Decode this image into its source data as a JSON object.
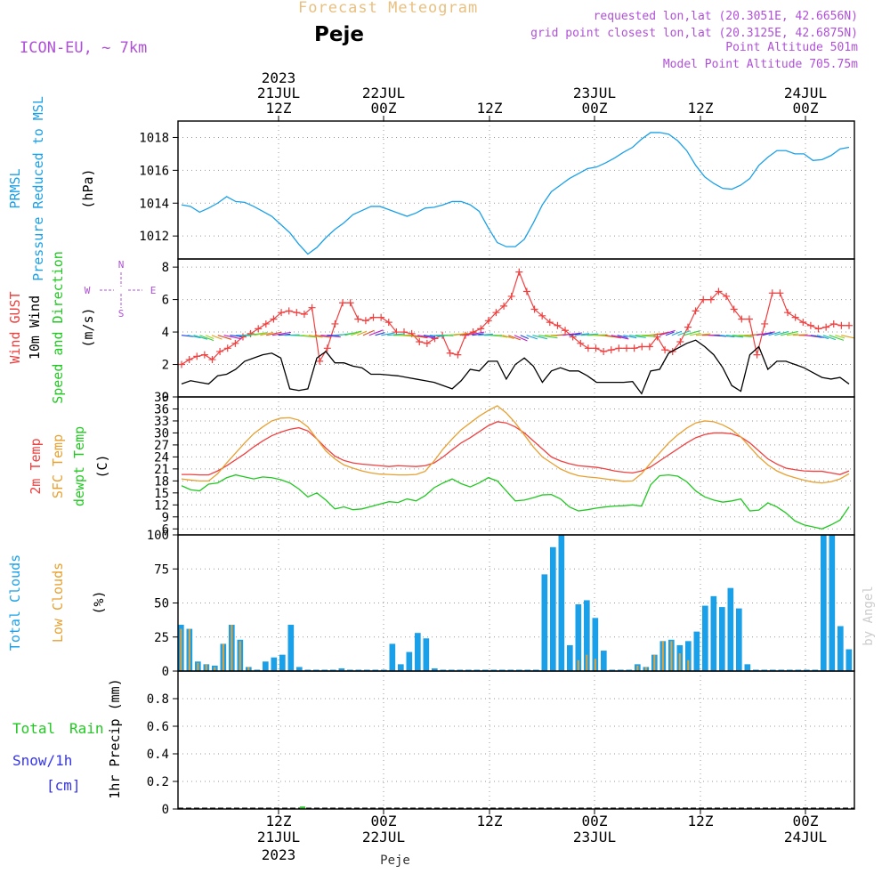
{
  "header": {
    "title": "Forecast Meteogram",
    "location": "Peje",
    "model": "ICON-EU, ~ 7km",
    "requested": "requested lon,lat (20.3051E, 42.6656N)",
    "grid": "grid point closest lon,lat (20.3125E, 42.6875N)",
    "point_alt": "Point Altitude 501m",
    "model_alt": "Model Point Altitude 705.75m",
    "credit": "by Angel",
    "footer": "Peje"
  },
  "colors": {
    "pressure": "#1aa0e8",
    "gust": "#f04040",
    "wind": "#000000",
    "green": "#22c822",
    "sfc": "#e8a030",
    "purple": "#b050d8",
    "title": "#e8c080",
    "blue": "#3333ee",
    "grid": "#999999"
  },
  "chart_data": [
    {
      "type": "line",
      "id": "pressure",
      "title": "PRMSL Pressure Reduced to MSL",
      "ylabel": "(hPa)",
      "y_ticks": [
        "1012",
        "1014",
        "1016",
        "1018"
      ],
      "ylim": [
        1010.6,
        1019.0
      ],
      "series": [
        {
          "name": "PRMSL",
          "values": [
            1013.9,
            1013.8,
            1013.45,
            1013.7,
            1014.0,
            1014.4,
            1014.1,
            1014.05,
            1013.8,
            1013.5,
            1013.2,
            1012.7,
            1012.2,
            1011.5,
            1010.9,
            1011.3,
            1011.9,
            1012.4,
            1012.8,
            1013.3,
            1013.55,
            1013.8,
            1013.8,
            1013.6,
            1013.4,
            1013.2,
            1013.4,
            1013.7,
            1013.75,
            1013.9,
            1014.1,
            1014.1,
            1013.9,
            1013.5,
            1012.5,
            1011.6,
            1011.35,
            1011.35,
            1011.8,
            1012.8,
            1013.9,
            1014.7,
            1015.1,
            1015.5,
            1015.8,
            1016.1,
            1016.2,
            1016.45,
            1016.75,
            1017.1,
            1017.4,
            1017.9,
            1018.3,
            1018.3,
            1018.2,
            1017.8,
            1017.2,
            1016.3,
            1015.6,
            1015.2,
            1014.9,
            1014.85,
            1015.1,
            1015.5,
            1016.3,
            1016.8,
            1017.2,
            1017.2,
            1017.0,
            1017.0,
            1016.6,
            1016.65,
            1016.9,
            1017.3,
            1017.4
          ]
        }
      ]
    },
    {
      "type": "line",
      "id": "wind",
      "title": "Wind GUST 10m Wind Speed and Direction",
      "ylabel": "(m/s)",
      "compass": [
        "N",
        "S",
        "W",
        "E"
      ],
      "y_ticks": [
        "0",
        "2",
        "4",
        "6",
        "8"
      ],
      "ylim": [
        0,
        8.5
      ],
      "series": [
        {
          "name": "Wind GUST",
          "values": [
            2.0,
            2.3,
            2.5,
            2.6,
            2.3,
            2.8,
            3.0,
            3.3,
            3.7,
            3.9,
            4.2,
            4.5,
            4.8,
            5.2,
            5.3,
            5.2,
            5.1,
            5.5,
            2.2,
            3.0,
            4.5,
            5.8,
            5.8,
            4.8,
            4.7,
            4.9,
            4.9,
            4.6,
            4.0,
            4.0,
            3.9,
            3.4,
            3.3,
            3.6,
            3.8,
            2.7,
            2.6,
            3.8,
            4.0,
            4.2,
            4.7,
            5.2,
            5.6,
            6.2,
            7.7,
            6.5,
            5.4,
            5.0,
            4.6,
            4.4,
            4.1,
            3.7,
            3.3,
            3.0,
            3.0,
            2.8,
            2.9,
            3.0,
            3.0,
            3.0,
            3.1,
            3.1,
            3.7,
            2.9,
            2.8,
            3.4,
            4.3,
            5.3,
            6.0,
            6.0,
            6.5,
            6.2,
            5.4,
            4.8,
            4.8,
            2.6,
            4.5,
            6.4,
            6.4,
            5.2,
            4.9,
            4.6,
            4.4,
            4.2,
            4.3,
            4.5,
            4.4,
            4.4
          ]
        },
        {
          "name": "10m Wind",
          "values": [
            0.8,
            1.0,
            0.9,
            0.8,
            1.3,
            1.4,
            1.7,
            2.2,
            2.4,
            2.6,
            2.7,
            2.4,
            0.5,
            0.4,
            0.5,
            2.4,
            2.8,
            2.1,
            2.1,
            1.9,
            1.8,
            1.4,
            1.4,
            1.35,
            1.3,
            1.2,
            1.1,
            1.0,
            0.9,
            0.7,
            0.5,
            1.0,
            1.7,
            1.6,
            2.2,
            2.2,
            1.1,
            2.0,
            2.4,
            1.9,
            0.9,
            1.6,
            1.8,
            1.6,
            1.6,
            1.3,
            0.9,
            0.9,
            0.9,
            0.9,
            0.95,
            0.2,
            1.6,
            1.7,
            2.7,
            3.0,
            3.3,
            3.5,
            3.1,
            2.6,
            1.8,
            0.7,
            0.35,
            2.6,
            3.1,
            1.7,
            2.2,
            2.2,
            2.0,
            1.8,
            1.5,
            1.2,
            1.1,
            1.2,
            0.8
          ]
        }
      ]
    },
    {
      "type": "line",
      "id": "temp",
      "title": "2m Temp SFC Temp dewpt Temp",
      "ylabel": "(C)",
      "y_ticks": [
        "6",
        "9",
        "12",
        "15",
        "18",
        "21",
        "24",
        "27",
        "30",
        "33",
        "36",
        "39"
      ],
      "ylim": [
        4.5,
        39
      ],
      "series": [
        {
          "name": "2m Temp",
          "values": [
            19.6,
            19.6,
            19.5,
            19.5,
            20.5,
            21.8,
            23.3,
            24.8,
            26.5,
            28.0,
            29.3,
            30.2,
            30.9,
            31.3,
            30.5,
            28.5,
            26.2,
            24.2,
            23.1,
            22.5,
            22.2,
            22.0,
            21.8,
            21.6,
            21.8,
            21.7,
            21.6,
            21.8,
            22.5,
            24.0,
            25.8,
            27.5,
            28.8,
            30.3,
            31.8,
            32.8,
            32.5,
            31.5,
            30.0,
            28.0,
            26.0,
            24.0,
            23.0,
            22.3,
            21.8,
            21.6,
            21.4,
            21.0,
            20.5,
            20.2,
            20.0,
            20.5,
            21.5,
            23.0,
            24.5,
            26.0,
            27.5,
            28.8,
            29.6,
            30.0,
            30.0,
            29.8,
            29.0,
            27.5,
            25.5,
            23.5,
            22.2,
            21.2,
            20.8,
            20.5,
            20.4,
            20.4,
            20.0,
            19.6,
            20.5
          ]
        },
        {
          "name": "SFC Temp",
          "values": [
            18.5,
            18.2,
            18.0,
            18.0,
            19.8,
            22.5,
            25.0,
            27.5,
            29.8,
            31.5,
            33.0,
            33.7,
            33.8,
            33.2,
            31.5,
            28.5,
            25.5,
            23.5,
            22.0,
            21.2,
            20.5,
            20.0,
            19.7,
            19.6,
            19.5,
            19.5,
            19.6,
            20.4,
            23.0,
            26.0,
            28.5,
            30.8,
            32.5,
            34.2,
            35.6,
            36.8,
            35.0,
            32.5,
            29.5,
            26.5,
            24.0,
            22.5,
            21.0,
            20.0,
            19.3,
            19.0,
            18.8,
            18.5,
            18.2,
            17.9,
            18.0,
            19.8,
            22.5,
            25.0,
            27.5,
            29.5,
            31.2,
            32.5,
            33.0,
            32.8,
            32.0,
            30.8,
            29.0,
            26.5,
            24.0,
            22.0,
            20.5,
            19.5,
            18.8,
            18.2,
            17.7,
            17.5,
            17.8,
            18.5,
            19.8
          ]
        },
        {
          "name": "dewpt Temp",
          "values": [
            16.8,
            15.8,
            15.5,
            17.2,
            17.5,
            18.8,
            19.5,
            19.0,
            18.5,
            19.0,
            18.8,
            18.3,
            17.5,
            16.0,
            14.0,
            15.0,
            13.2,
            11.0,
            11.5,
            10.8,
            11.0,
            11.6,
            12.2,
            12.8,
            12.6,
            13.5,
            13.0,
            14.3,
            16.3,
            17.5,
            18.5,
            17.3,
            16.5,
            17.5,
            18.8,
            18.0,
            15.5,
            13.0,
            13.2,
            13.8,
            14.5,
            14.6,
            13.5,
            11.5,
            10.5,
            10.8,
            11.2,
            11.5,
            11.7,
            11.8,
            12.0,
            11.7,
            17.0,
            19.3,
            19.5,
            19.2,
            17.8,
            15.5,
            14.0,
            13.2,
            12.7,
            13.0,
            13.5,
            10.5,
            10.7,
            12.5,
            11.5,
            10.0,
            8.0,
            7.0,
            6.5,
            6.0,
            7.0,
            8.2,
            11.5
          ]
        }
      ]
    },
    {
      "type": "bar",
      "id": "clouds",
      "title": "Total Clouds Low Clouds",
      "ylabel": "(%)",
      "y_ticks": [
        "0",
        "25",
        "50",
        "75",
        "100"
      ],
      "ylim": [
        0,
        100
      ],
      "series": [
        {
          "name": "Total Clouds",
          "values": [
            34,
            31,
            7,
            5,
            4,
            20,
            34,
            23,
            3,
            1,
            7,
            10,
            12,
            34,
            3,
            1,
            1,
            1,
            1,
            2,
            1,
            1,
            1,
            1,
            1,
            20,
            5,
            14,
            28,
            24,
            2,
            1,
            1,
            1,
            1,
            1,
            1,
            1,
            1,
            1,
            1,
            1,
            1,
            71,
            91,
            100,
            19,
            49,
            52,
            39,
            15,
            1,
            1,
            1,
            5,
            3,
            12,
            22,
            23,
            19,
            22,
            29,
            48,
            55,
            47,
            61,
            46,
            5,
            1,
            1,
            1,
            1,
            1,
            1,
            1,
            1,
            100,
            100,
            33,
            16
          ]
        },
        {
          "name": "Low Clouds",
          "values": [
            31,
            31,
            6,
            5,
            3,
            20,
            34,
            22,
            3,
            0,
            0,
            0,
            0,
            0,
            0,
            0,
            0,
            0,
            0,
            0,
            0,
            0,
            0,
            0,
            0,
            0,
            0,
            0,
            0,
            0,
            0,
            0,
            0,
            0,
            0,
            0,
            0,
            0,
            0,
            0,
            0,
            0,
            0,
            0,
            0,
            0,
            0,
            8,
            12,
            9,
            0,
            0,
            0,
            0,
            4,
            3,
            12,
            22,
            22,
            13,
            8,
            0,
            0,
            0,
            0,
            0,
            0,
            0,
            0,
            0,
            0,
            0,
            0,
            0,
            0,
            0,
            0,
            0,
            0,
            0
          ]
        }
      ]
    },
    {
      "type": "bar",
      "id": "precip",
      "title": "Total Rain Snow/1h [cm]",
      "ylabel": "1hr Precip (mm)",
      "y_ticks": [
        "0",
        "0.2",
        "0.4",
        "0.6",
        "0.8"
      ],
      "ylim": [
        0,
        1.0
      ],
      "series": [
        {
          "name": "Total Rain",
          "values": [
            0.005
          ]
        }
      ]
    }
  ],
  "time_axis": {
    "labels": [
      {
        "top": "12Z",
        "mid": "21JUL",
        "year": "2023"
      },
      {
        "top": "00Z",
        "mid": "22JUL",
        "year": ""
      },
      {
        "top": "12Z",
        "mid": "",
        "year": ""
      },
      {
        "top": "00Z",
        "mid": "23JUL",
        "year": ""
      },
      {
        "top": "12Z",
        "mid": "",
        "year": ""
      },
      {
        "top": "00Z",
        "mid": "24JUL",
        "year": ""
      }
    ]
  },
  "panel_labels": {
    "pressure": {
      "a": "PRMSL",
      "b": "Pressure Reduced to MSL",
      "unit": "(hPa)"
    },
    "wind": {
      "a": "Wind GUST",
      "b": "10m Wind",
      "c": "Speed and Direction",
      "unit": "(m/s)"
    },
    "temp": {
      "a": "2m Temp",
      "b": "SFC Temp",
      "c": "dewpt Temp",
      "unit": "(C)"
    },
    "clouds": {
      "a": "Total Clouds",
      "b": "Low Clouds",
      "unit": "(%)"
    },
    "precip": {
      "total": "Total",
      "rain": "Rain",
      "snow": "Snow/1h",
      "cm": "[cm]",
      "unit": "1hr Precip (mm)"
    }
  }
}
